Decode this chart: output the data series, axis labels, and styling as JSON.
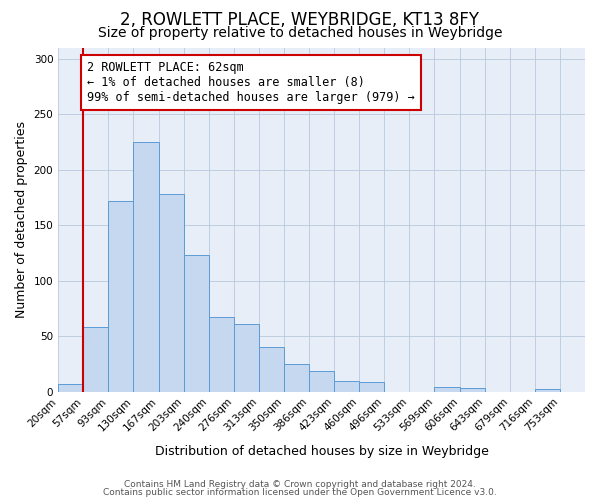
{
  "title": "2, ROWLETT PLACE, WEYBRIDGE, KT13 8FY",
  "subtitle": "Size of property relative to detached houses in Weybridge",
  "xlabel": "Distribution of detached houses by size in Weybridge",
  "ylabel": "Number of detached properties",
  "bin_labels": [
    "20sqm",
    "57sqm",
    "93sqm",
    "130sqm",
    "167sqm",
    "203sqm",
    "240sqm",
    "276sqm",
    "313sqm",
    "350sqm",
    "386sqm",
    "423sqm",
    "460sqm",
    "496sqm",
    "533sqm",
    "569sqm",
    "606sqm",
    "643sqm",
    "679sqm",
    "716sqm",
    "753sqm"
  ],
  "bar_heights": [
    7,
    58,
    172,
    225,
    178,
    123,
    67,
    61,
    40,
    25,
    19,
    10,
    9,
    0,
    0,
    4,
    3,
    0,
    0,
    2,
    0
  ],
  "bar_color": "#c5d8f0",
  "bar_edge_color": "#5b9bd5",
  "annotation_lines": [
    "2 ROWLETT PLACE: 62sqm",
    "← 1% of detached houses are smaller (8)",
    "99% of semi-detached houses are larger (979) →"
  ],
  "annotation_box_color": "#ffffff",
  "annotation_box_edge": "#cc0000",
  "vline_color": "#cc0000",
  "ylim": [
    0,
    310
  ],
  "yticks": [
    0,
    50,
    100,
    150,
    200,
    250,
    300
  ],
  "bg_color": "#e8eef8",
  "footer_lines": [
    "Contains HM Land Registry data © Crown copyright and database right 2024.",
    "Contains public sector information licensed under the Open Government Licence v3.0."
  ],
  "title_fontsize": 12,
  "subtitle_fontsize": 10,
  "axis_label_fontsize": 9,
  "tick_fontsize": 7.5,
  "annotation_fontsize": 8.5,
  "footer_fontsize": 6.5
}
